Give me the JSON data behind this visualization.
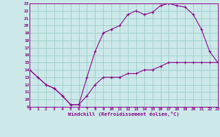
{
  "xlabel": "Windchill (Refroidissement éolien,°C)",
  "bg_color": "#cce8e8",
  "line_color": "#880088",
  "grid_color": "#99cccc",
  "xmin": 0,
  "xmax": 23,
  "ymin": 9,
  "ymax": 23,
  "line1_x": [
    0,
    1,
    2,
    3,
    4,
    5,
    6,
    7,
    8,
    9,
    10,
    11,
    12,
    13,
    14,
    15,
    16,
    17,
    18,
    19,
    20,
    21,
    22,
    23
  ],
  "line1_y": [
    14,
    13,
    12,
    11.5,
    10.5,
    9.3,
    9.3,
    13,
    16.5,
    19,
    19.5,
    20,
    21.5,
    22,
    21.5,
    21.8,
    22.7,
    23,
    22.7,
    22.5,
    21.5,
    19.5,
    16.5,
    15
  ],
  "line2_x": [
    0,
    2,
    3,
    4,
    5,
    6,
    7,
    8,
    9,
    10,
    11,
    12,
    13,
    14,
    15,
    16,
    17,
    18,
    19,
    20,
    21,
    22,
    23
  ],
  "line2_y": [
    14,
    12,
    11.5,
    10.5,
    9.3,
    9.3,
    10.5,
    12,
    13,
    13,
    13,
    13.5,
    13.5,
    14,
    14,
    14.5,
    15,
    15,
    15,
    15,
    15,
    15,
    15
  ]
}
